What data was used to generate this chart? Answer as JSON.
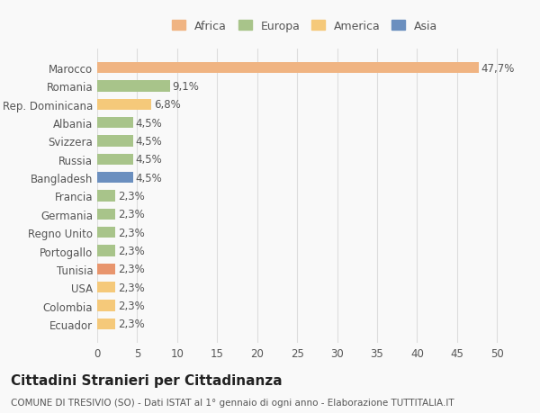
{
  "categories": [
    "Ecuador",
    "Colombia",
    "USA",
    "Tunisia",
    "Portogallo",
    "Regno Unito",
    "Germania",
    "Francia",
    "Bangladesh",
    "Russia",
    "Svizzera",
    "Albania",
    "Rep. Dominicana",
    "Romania",
    "Marocco"
  ],
  "values": [
    2.3,
    2.3,
    2.3,
    2.3,
    2.3,
    2.3,
    2.3,
    2.3,
    4.5,
    4.5,
    4.5,
    4.5,
    6.8,
    9.1,
    47.7
  ],
  "labels": [
    "2,3%",
    "2,3%",
    "2,3%",
    "2,3%",
    "2,3%",
    "2,3%",
    "2,3%",
    "2,3%",
    "4,5%",
    "4,5%",
    "4,5%",
    "4,5%",
    "6,8%",
    "9,1%",
    "47,7%"
  ],
  "colors": [
    "#f5c97a",
    "#f5c97a",
    "#f5c97a",
    "#e8956d",
    "#a8c48a",
    "#a8c48a",
    "#a8c48a",
    "#a8c48a",
    "#6b8fbf",
    "#a8c48a",
    "#a8c48a",
    "#a8c48a",
    "#f5c97a",
    "#a8c48a",
    "#f0b482"
  ],
  "legend": {
    "Africa": "#f0b482",
    "Europa": "#a8c48a",
    "America": "#f5c97a",
    "Asia": "#6b8fbf"
  },
  "xlim": [
    0,
    52
  ],
  "xticks": [
    0,
    5,
    10,
    15,
    20,
    25,
    30,
    35,
    40,
    45,
    50
  ],
  "title": "Cittadini Stranieri per Cittadinanza",
  "subtitle": "COMUNE DI TRESIVIO (SO) - Dati ISTAT al 1° gennaio di ogni anno - Elaborazione TUTTITALIA.IT",
  "bg_color": "#f9f9f9",
  "grid_color": "#dddddd",
  "bar_height": 0.6,
  "label_fontsize": 8.5,
  "tick_fontsize": 8.5,
  "title_fontsize": 11,
  "subtitle_fontsize": 7.5
}
